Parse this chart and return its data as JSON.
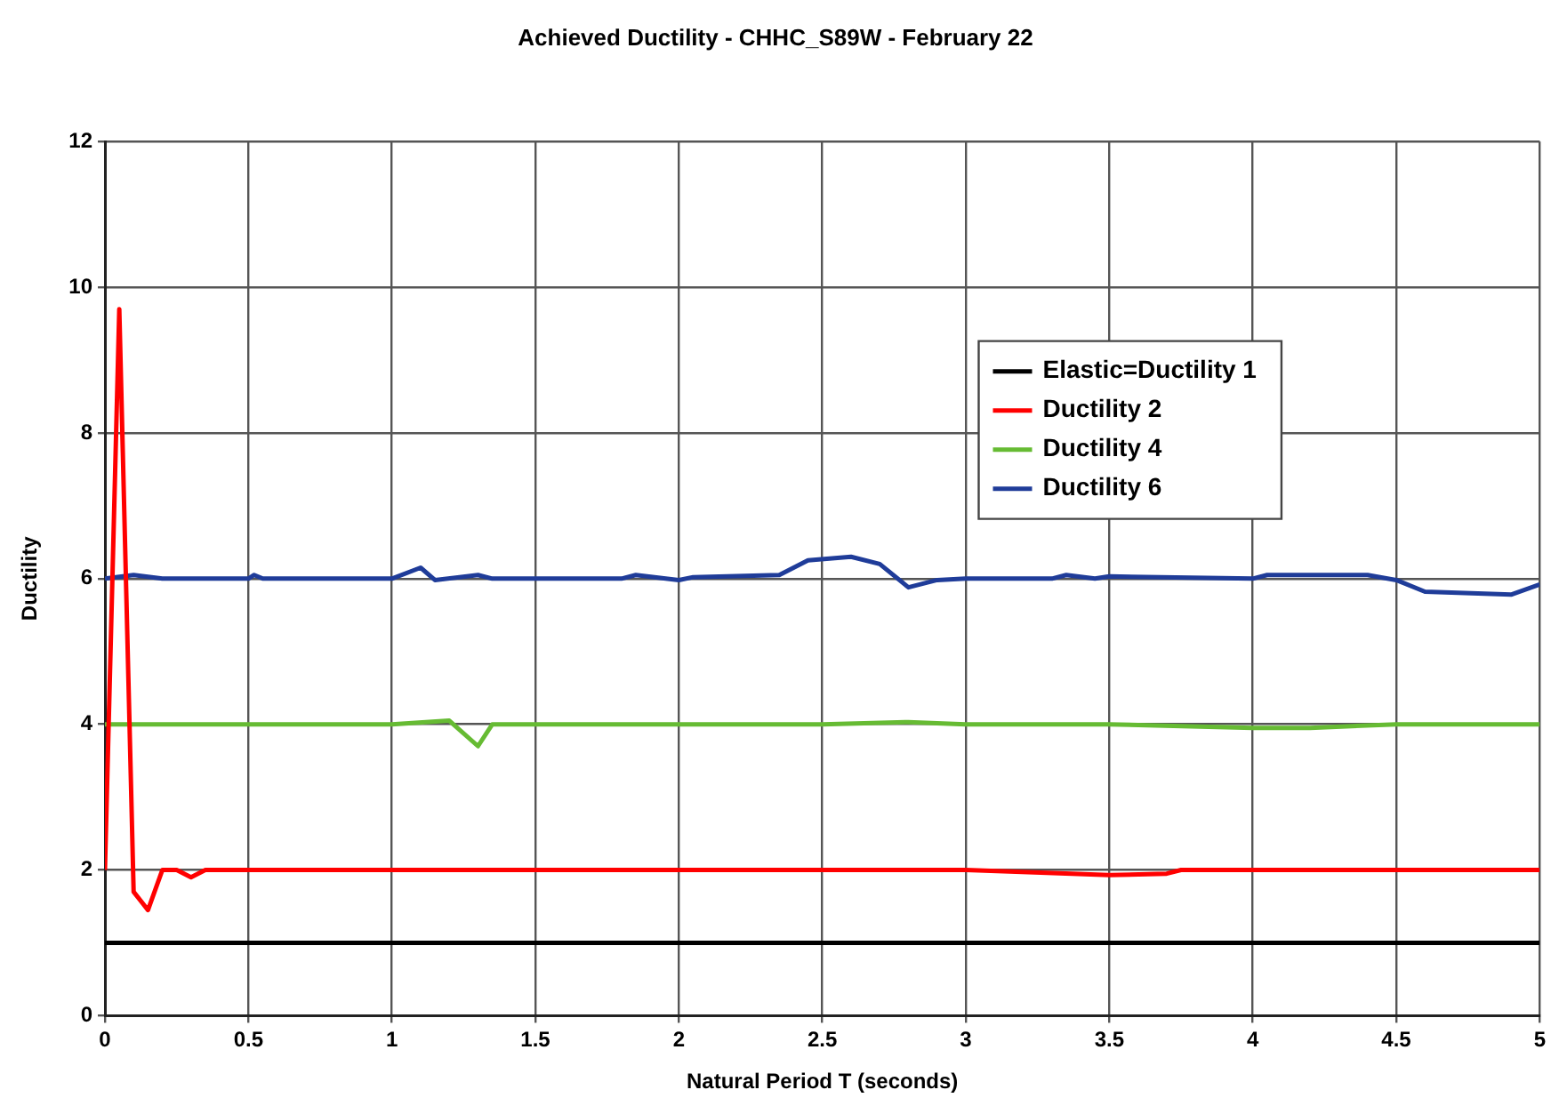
{
  "chart_data": {
    "type": "line",
    "title": "Achieved Ductility - CHHC_S89W - February 22",
    "xlabel": "Natural Period T (seconds)",
    "ylabel": "Ductility",
    "xlim": [
      0,
      5
    ],
    "xticks": [
      0,
      0.5,
      1,
      1.5,
      2,
      2.5,
      3,
      3.5,
      4,
      4.5,
      5
    ],
    "ylim": [
      0,
      12
    ],
    "yticks": [
      0,
      2,
      4,
      6,
      8,
      10,
      12
    ],
    "grid": true,
    "legend": "right",
    "marker": "none",
    "line_style": "solid",
    "series": [
      {
        "name": "Elastic=Ductility 1",
        "color": "#000000",
        "x": [
          0,
          5
        ],
        "values": [
          1,
          1
        ]
      },
      {
        "name": "Ductility 2",
        "color": "#ff0000",
        "x": [
          0,
          0.05,
          0.1,
          0.15,
          0.2,
          0.25,
          0.3,
          0.35,
          1,
          1.5,
          2,
          2.5,
          3,
          3.5,
          3.7,
          3.75,
          4,
          4.5,
          5
        ],
        "values": [
          2,
          9.7,
          1.7,
          1.45,
          2,
          2,
          1.9,
          2,
          2,
          2,
          2,
          2,
          2,
          1.93,
          1.95,
          2,
          2,
          2,
          2
        ]
      },
      {
        "name": "Ductility 4",
        "color": "#66bb33",
        "x": [
          0,
          0.5,
          1,
          1.2,
          1.3,
          1.35,
          1.5,
          2,
          2.5,
          2.8,
          3,
          3.5,
          4,
          4.2,
          4.5,
          5
        ],
        "values": [
          4,
          4,
          4,
          4.05,
          3.7,
          4,
          4,
          4,
          4,
          4.03,
          4,
          4,
          3.95,
          3.95,
          4,
          4
        ]
      },
      {
        "name": "Ductility 6",
        "color": "#1f3c99",
        "x": [
          0,
          0.1,
          0.2,
          0.5,
          0.52,
          0.55,
          1,
          1.1,
          1.15,
          1.3,
          1.35,
          1.8,
          1.85,
          2,
          2.05,
          2.35,
          2.45,
          2.6,
          2.7,
          2.8,
          2.9,
          3,
          3.3,
          3.35,
          3.45,
          3.5,
          4,
          4.05,
          4.4,
          4.5,
          4.6,
          4.9,
          5
        ],
        "values": [
          6,
          6.05,
          6,
          6,
          6.05,
          6,
          6,
          6.15,
          5.98,
          6.05,
          6,
          6,
          6.05,
          5.98,
          6.02,
          6.05,
          6.25,
          6.3,
          6.2,
          5.88,
          5.98,
          6,
          6,
          6.05,
          6,
          6.03,
          6,
          6.05,
          6.05,
          5.98,
          5.82,
          5.78,
          5.92
        ]
      }
    ]
  }
}
